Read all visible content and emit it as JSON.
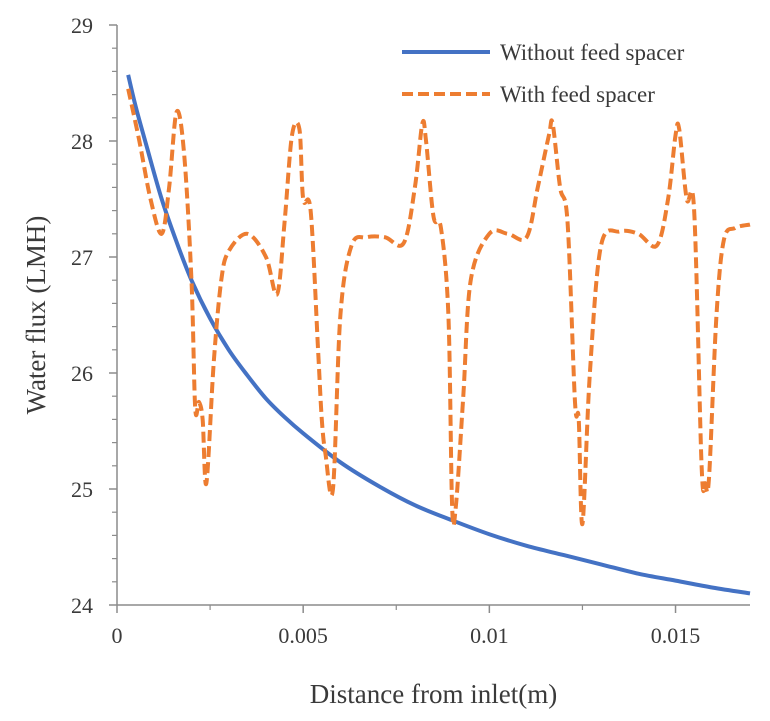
{
  "chart_data": {
    "type": "line",
    "title": "",
    "xlabel": "Distance from inlet(m)",
    "ylabel": "Water  flux (LMH)",
    "xlim": [
      0,
      0.017
    ],
    "ylim": [
      24,
      29
    ],
    "x_ticks": [
      0,
      0.005,
      0.01,
      0.015
    ],
    "x_tick_labels": [
      "0",
      "0.005",
      "0.01",
      "0.015"
    ],
    "y_ticks": [
      24,
      25,
      26,
      27,
      28,
      29
    ],
    "y_tick_labels": [
      "24",
      "25",
      "26",
      "27",
      "28",
      "29"
    ],
    "grid": false,
    "legend_position": "top-right",
    "series": [
      {
        "name": "Without feed spacer",
        "color": "#4472c4",
        "style": "solid",
        "x": [
          0.0003,
          0.0005,
          0.0008,
          0.0012,
          0.0016,
          0.002,
          0.0025,
          0.003,
          0.0035,
          0.004,
          0.0045,
          0.005,
          0.006,
          0.007,
          0.008,
          0.009,
          0.01,
          0.011,
          0.012,
          0.013,
          0.014,
          0.015,
          0.016,
          0.017
        ],
        "y": [
          28.57,
          28.3,
          27.95,
          27.5,
          27.13,
          26.8,
          26.47,
          26.2,
          25.98,
          25.78,
          25.62,
          25.48,
          25.23,
          25.03,
          24.86,
          24.73,
          24.61,
          24.51,
          24.43,
          24.35,
          24.27,
          24.21,
          24.15,
          24.1
        ]
      },
      {
        "name": "With feed spacer",
        "color": "#ed7d31",
        "style": "dashed",
        "x": [
          0.0003,
          0.0006,
          0.0009,
          0.0012,
          0.0014,
          0.0016,
          0.0018,
          0.002,
          0.0021,
          0.0022,
          0.0023,
          0.0024,
          0.0026,
          0.0028,
          0.003,
          0.0035,
          0.004,
          0.0043,
          0.0045,
          0.0047,
          0.0049,
          0.005,
          0.0052,
          0.0054,
          0.0055,
          0.0056,
          0.0058,
          0.006,
          0.0063,
          0.0067,
          0.0072,
          0.0077,
          0.008,
          0.0082,
          0.0083,
          0.0085,
          0.0087,
          0.0089,
          0.009,
          0.0091,
          0.0093,
          0.0095,
          0.01,
          0.0105,
          0.011,
          0.0113,
          0.0116,
          0.0117,
          0.0119,
          0.0121,
          0.0123,
          0.0124,
          0.0125,
          0.0127,
          0.013,
          0.0135,
          0.014,
          0.0145,
          0.0148,
          0.015,
          0.0151,
          0.0153,
          0.0155,
          0.0157,
          0.0158,
          0.0159,
          0.0161,
          0.0163,
          0.0166,
          0.017
        ],
        "y": [
          28.45,
          28.0,
          27.5,
          27.2,
          27.6,
          28.25,
          27.9,
          26.8,
          25.7,
          25.75,
          25.6,
          25.05,
          26.1,
          26.8,
          27.05,
          27.2,
          27.0,
          26.68,
          27.3,
          28.05,
          28.1,
          27.5,
          27.4,
          26.2,
          25.6,
          25.3,
          25.0,
          26.5,
          27.1,
          27.17,
          27.17,
          27.12,
          27.6,
          28.15,
          28.0,
          27.35,
          27.25,
          26.5,
          24.85,
          24.85,
          25.8,
          26.8,
          27.2,
          27.2,
          27.17,
          27.6,
          28.05,
          28.15,
          27.6,
          27.3,
          25.75,
          25.6,
          24.7,
          26.0,
          27.1,
          27.22,
          27.2,
          27.1,
          27.5,
          28.05,
          28.1,
          27.5,
          27.4,
          25.2,
          25.05,
          25.1,
          26.5,
          27.15,
          27.25,
          27.28
        ]
      }
    ]
  }
}
